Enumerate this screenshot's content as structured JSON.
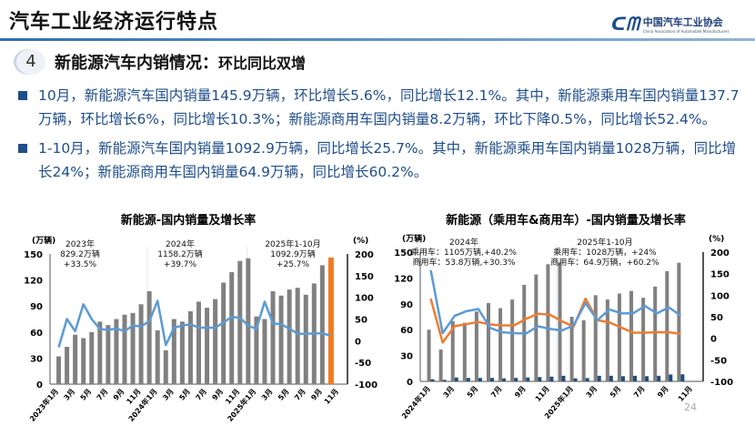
{
  "header": {
    "title": "汽车工业经济运行特点",
    "logo_mark": "CM",
    "logo_cn": "中国汽车工业协会",
    "logo_en": "China Association of Automobile Manufacturers"
  },
  "section": {
    "number": "4",
    "title": "新能源汽车内销情况：",
    "subtitle": "环比同比双增"
  },
  "bullets": [
    "10月，新能源汽车国内销量145.9万辆，环比增长5.6%，同比增长12.1%。其中，新能源乘用车国内销量137.7万辆，环比增长6%，同比增长10.3%；新能源商用车国内销量8.2万辆，环比下降0.5%，同比增长52.4%。",
    "1-10月，新能源汽车国内销量1092.9万辆，同比增长25.7%。其中，新能源乘用车国内销量1028万辆，同比增长24%；新能源商用车国内销量64.9万辆，同比增长60.2%。"
  ],
  "page_number": "24",
  "chart_data": [
    {
      "type": "bar+line",
      "title": "新能源-国内销量及增长率",
      "ylabel_left": "(万辆)",
      "ylabel_right": "(%)",
      "ylim_left": [
        0,
        150
      ],
      "yticks_left": [
        "0",
        "30",
        "60",
        "90",
        "120",
        "150"
      ],
      "ylim_right": [
        -100,
        200
      ],
      "yticks_right": [
        "-100",
        "-50",
        "0",
        "50",
        "100",
        "150",
        "200"
      ],
      "x_slots": 35,
      "xticklabels": [
        "2023年1月",
        "3月",
        "5月",
        "7月",
        "9月",
        "11月",
        "2024年1月",
        "3月",
        "5月",
        "7月",
        "9月",
        "11月",
        "2025年1月",
        "3月",
        "5月",
        "7月",
        "9月",
        "11月"
      ],
      "bar_series": [
        {
          "axis": "left",
          "color": "#808080",
          "highlight_last_color": "#f07c22",
          "values": [
            32,
            43,
            57,
            53,
            60,
            72,
            68,
            75,
            80,
            82,
            92,
            107,
            62,
            39,
            75,
            72,
            84,
            95,
            88,
            98,
            117,
            129,
            142,
            145,
            78,
            75,
            107,
            102,
            109,
            111,
            103,
            116,
            137,
            145.9
          ]
        }
      ],
      "line_series": [
        {
          "axis": "right",
          "color": "#5b9bd5",
          "values": [
            -15,
            50,
            22,
            84,
            50,
            27,
            25,
            28,
            22,
            35,
            33,
            45,
            92,
            -10,
            30,
            35,
            38,
            30,
            30,
            30,
            42,
            55,
            53,
            35,
            27,
            90,
            40,
            38,
            28,
            16,
            16,
            17,
            17,
            12.1
          ]
        }
      ],
      "annotations": [
        {
          "lines": [
            "2023年",
            "829.2万辆",
            "+33.5%"
          ]
        },
        {
          "lines": [
            "2024年",
            "1158.2万辆",
            "+39.7%"
          ]
        },
        {
          "lines": [
            "2025年1-10月",
            "1092.9万辆",
            "+25.7%"
          ]
        }
      ],
      "grid": false,
      "legend": "none"
    },
    {
      "type": "bar+line",
      "title": "新能源（乘用车&商用车）-国内销量及增长率",
      "ylabel_left": "(万辆)",
      "ylabel_right": "(%)",
      "ylim_left": [
        0,
        150
      ],
      "yticks_left": [
        "0",
        "30",
        "60",
        "90",
        "120",
        "150"
      ],
      "ylim_right": [
        -100,
        200
      ],
      "yticks_right": [
        "-100",
        "-50",
        "0",
        "50",
        "100",
        "150",
        "200"
      ],
      "x_slots": 23,
      "xticklabels": [
        "2024年1月",
        "3月",
        "5月",
        "7月",
        "9月",
        "11月",
        "2025年1月",
        "3月",
        "5月",
        "7月",
        "9月",
        "11月"
      ],
      "bar_series": [
        {
          "axis": "left",
          "color": "#808080",
          "values": [
            60,
            37,
            70,
            68,
            81,
            91,
            85,
            95,
            112,
            124,
            136,
            138,
            75,
            71,
            100,
            95,
            102,
            105,
            97,
            110,
            128,
            137.7
          ]
        },
        {
          "axis": "left",
          "color": "#1f4e79",
          "values": [
            2.5,
            1.8,
            4.5,
            4,
            4,
            4,
            3.5,
            4,
            4.5,
            5,
            5.5,
            6.5,
            3.5,
            3.8,
            6.5,
            6.5,
            6,
            6.5,
            6,
            6.5,
            8,
            8.2
          ]
        }
      ],
      "line_series": [
        {
          "axis": "right",
          "color": "#ed7d31",
          "values": [
            92,
            -10,
            28,
            33,
            38,
            32,
            30,
            30,
            45,
            57,
            55,
            40,
            27,
            92,
            42,
            37,
            25,
            13,
            13,
            14,
            14,
            10.3
          ]
        },
        {
          "axis": "right",
          "color": "#5b9bd5",
          "values": [
            158,
            12,
            52,
            63,
            68,
            24,
            14,
            12,
            11,
            28,
            22,
            18,
            30,
            82,
            42,
            67,
            58,
            58,
            75,
            58,
            72,
            52.4
          ]
        }
      ],
      "annotations": [
        {
          "lines": [
            "2024年",
            "乘用车：1105万辆,+40.2%",
            "商用车：53.8万辆,+30.3%"
          ]
        },
        {
          "lines": [
            "2025年1-10月",
            "乘用车：1028万辆，+24%",
            "商用车：64.9万辆，+60.2%"
          ]
        }
      ],
      "grid": false,
      "legend": "none"
    }
  ]
}
